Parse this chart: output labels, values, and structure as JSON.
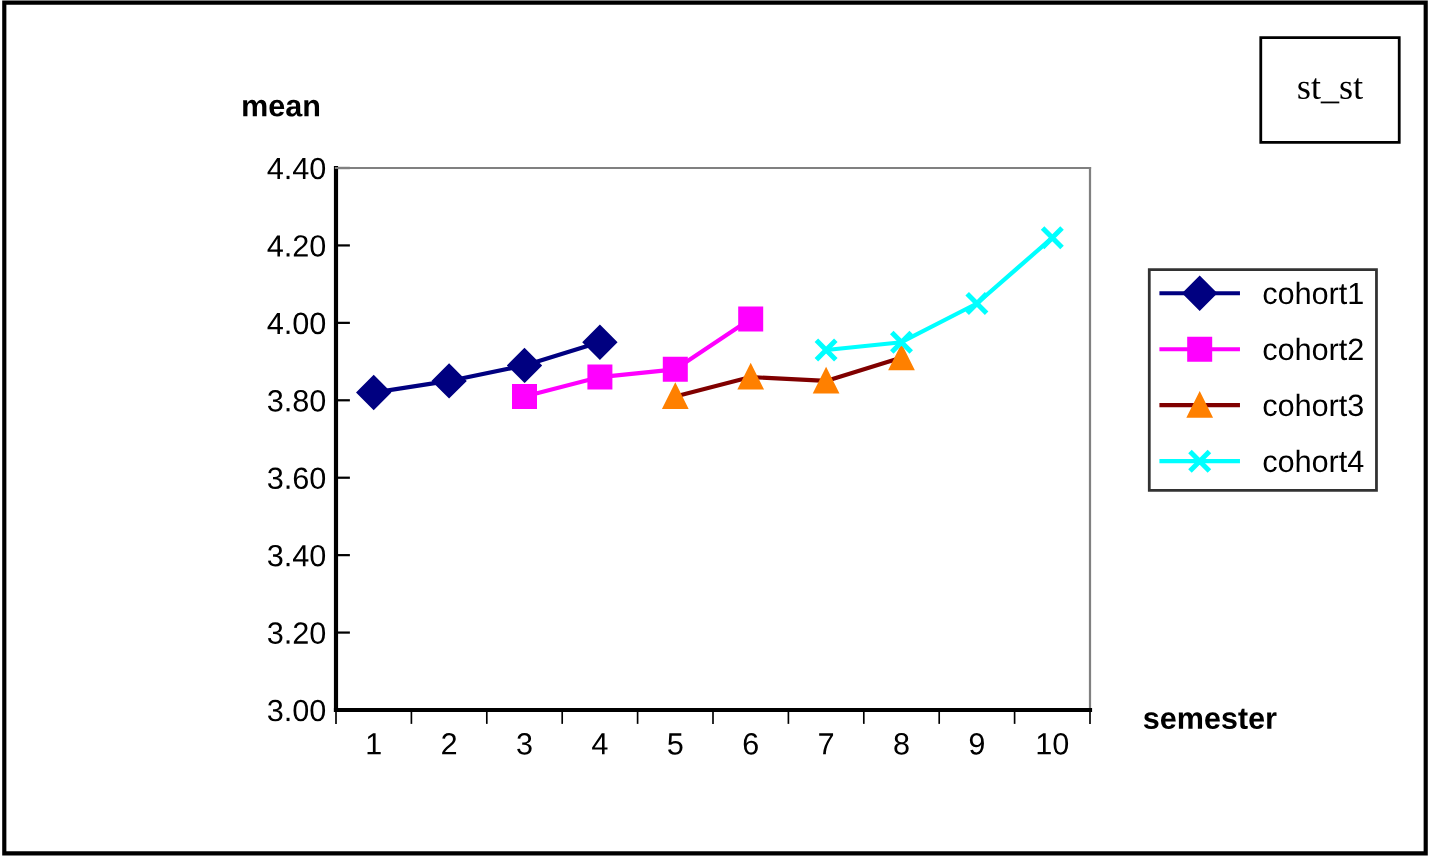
{
  "chart_data": {
    "type": "line",
    "ylabel": "mean",
    "xlabel": "semester",
    "annotations": [
      "st_st"
    ],
    "categories": [
      "1",
      "2",
      "3",
      "4",
      "5",
      "6",
      "7",
      "8",
      "9",
      "10"
    ],
    "ylim": [
      3.0,
      4.4
    ],
    "yticks": [
      {
        "value": 3.0,
        "label": "3.00"
      },
      {
        "value": 3.2,
        "label": "3.20"
      },
      {
        "value": 3.4,
        "label": "3.40"
      },
      {
        "value": 3.6,
        "label": "3.60"
      },
      {
        "value": 3.8,
        "label": "3.80"
      },
      {
        "value": 4.0,
        "label": "4.00"
      },
      {
        "value": 4.2,
        "label": "4.20"
      },
      {
        "value": 4.4,
        "label": "4.40"
      }
    ],
    "grid": false,
    "legend": "right",
    "line_style": "solid",
    "series": [
      {
        "name": "cohort1",
        "color": "#000080",
        "marker": "diamond",
        "values": [
          3.82,
          3.85,
          3.89,
          3.95,
          null,
          null,
          null,
          null,
          null,
          null
        ]
      },
      {
        "name": "cohort2",
        "color": "#ff00ff",
        "marker": "square",
        "values": [
          null,
          null,
          3.81,
          3.86,
          3.88,
          4.01,
          null,
          null,
          null,
          null
        ]
      },
      {
        "name": "cohort3",
        "color": "#800000",
        "marker": "triangle",
        "colors": [
          null,
          null,
          null,
          null,
          "#ff8000",
          "#ff8000",
          "#ff8000",
          "#ff8000",
          null,
          null
        ],
        "values": [
          null,
          null,
          null,
          null,
          3.81,
          3.86,
          3.85,
          3.91,
          null,
          null
        ]
      },
      {
        "name": "cohort4",
        "color": "#00ffff",
        "marker": "cross",
        "values": [
          null,
          null,
          null,
          null,
          null,
          null,
          3.93,
          3.95,
          4.05,
          4.22
        ]
      }
    ]
  }
}
